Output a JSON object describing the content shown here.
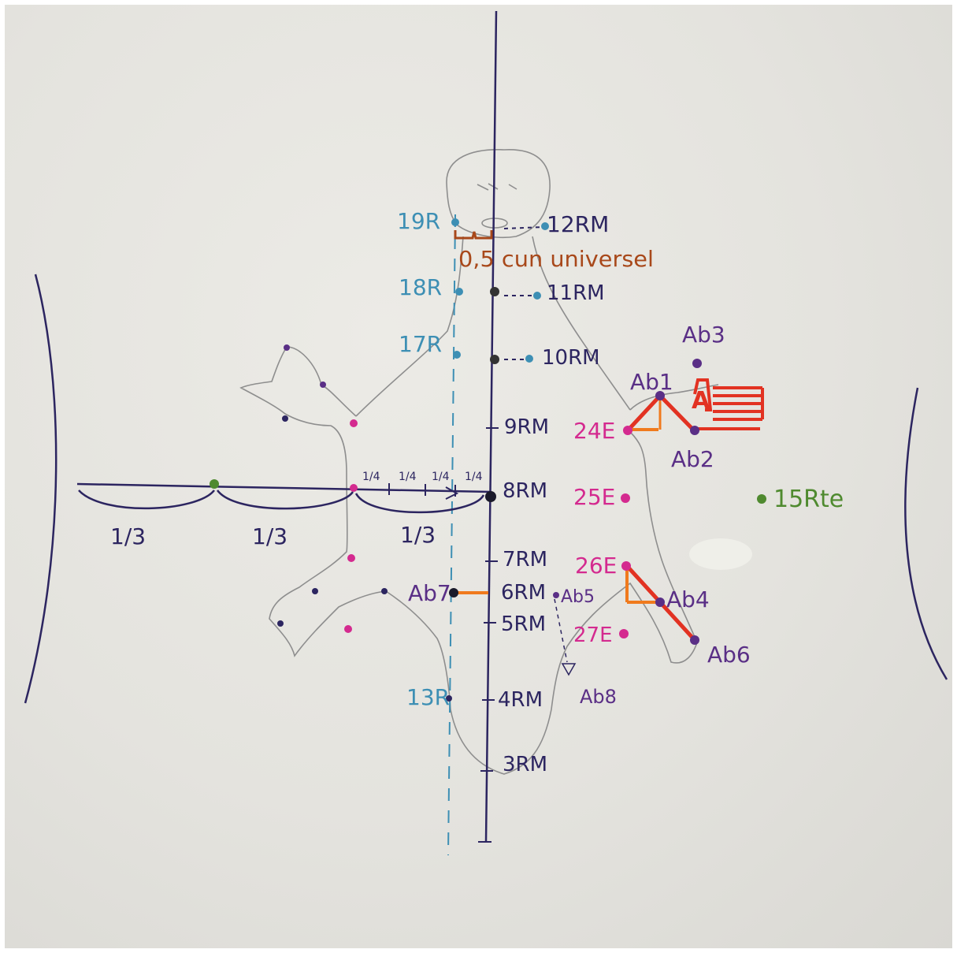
{
  "colors": {
    "blue": "#3d8fb4",
    "navy": "#2c2560",
    "purple": "#5a2f86",
    "magenta": "#d42a8f",
    "orange": "#f07a1d",
    "red": "#e23222",
    "green": "#4f8a2f",
    "brown": "#a8481a",
    "pencil": "#8e8e8e"
  },
  "labels": {
    "r19": "19R",
    "r18": "18R",
    "r17": "17R",
    "r13": "13R",
    "rm12": "12RM",
    "rm11": "11RM",
    "rm10": "10RM",
    "rm9": "9RM",
    "rm8": "8RM",
    "rm7": "7RM",
    "rm6": "6RM",
    "rm5": "5RM",
    "rm4": "4RM",
    "rm3": "3RM",
    "universal": "0,5 cun universel",
    "e24": "24E",
    "e25": "25E",
    "e26": "26E",
    "e27": "27E",
    "ab1": "Ab1",
    "ab2": "Ab2",
    "ab3": "Ab3",
    "ab4": "Ab4",
    "ab5": "Ab5",
    "ab6": "Ab6",
    "ab7": "Ab7",
    "ab8": "Ab8",
    "a": "A",
    "rte15": "15Rte",
    "third1": "1/3",
    "third2": "1/3",
    "third3": "1/3",
    "q1": "1/4",
    "q2": "1/4",
    "q3": "1/4",
    "q4": "1/4"
  }
}
